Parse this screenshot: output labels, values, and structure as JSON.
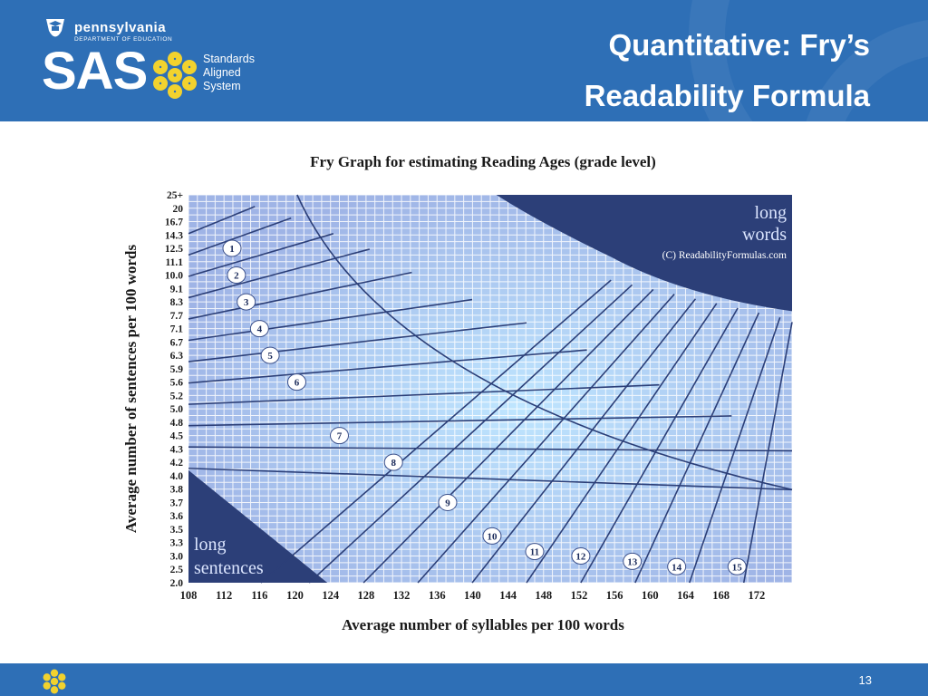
{
  "header": {
    "org_name": "pennsylvania",
    "org_dept": "DEPARTMENT OF EDUCATION",
    "logo_text": "SAS",
    "logo_sub": [
      "Standards",
      "Aligned",
      "System"
    ],
    "title_line1": "Quantitative: Fry’s",
    "title_line2": "Readability Formula",
    "bg_color": "#2e6fb6",
    "accent_color": "#f2d22e"
  },
  "footer": {
    "page_number": "13"
  },
  "chart_data": {
    "type": "line",
    "title": "Fry Graph for estimating Reading Ages (grade level)",
    "xlabel": "Average number of syllables per 100 words",
    "ylabel": "Average number of sentences per 100 words",
    "x_ticks": [
      "108",
      "112",
      "116",
      "120",
      "124",
      "128",
      "132",
      "136",
      "140",
      "144",
      "148",
      "152",
      "156",
      "160",
      "164",
      "168",
      "172"
    ],
    "y_ticks": [
      "25+",
      "20",
      "16.7",
      "14.3",
      "12.5",
      "11.1",
      "10.0",
      "9.1",
      "8.3",
      "7.7",
      "7.1",
      "6.7",
      "6.3",
      "5.9",
      "5.6",
      "5.2",
      "5.0",
      "4.8",
      "4.5",
      "4.3",
      "4.2",
      "4.0",
      "3.8",
      "3.7",
      "3.6",
      "3.5",
      "3.3",
      "3.0",
      "2.5",
      "2.0"
    ],
    "grid": true,
    "grade_labels": [
      "1",
      "2",
      "3",
      "4",
      "5",
      "6",
      "7",
      "8",
      "9",
      "10",
      "11",
      "12",
      "13",
      "14",
      "15"
    ],
    "grade_positions": [
      {
        "x": 112.9,
        "y": "12.5"
      },
      {
        "x": 113.4,
        "y": "10.0"
      },
      {
        "x": 114.5,
        "y": "8.3"
      },
      {
        "x": 116.0,
        "y": "7.1"
      },
      {
        "x": 117.2,
        "y": "6.3"
      },
      {
        "x": 120.2,
        "y": "5.6"
      },
      {
        "x": 125.0,
        "y": "4.5"
      },
      {
        "x": 131.1,
        "y": "4.2"
      },
      {
        "x": 137.2,
        "y": "3.7"
      },
      {
        "x": 142.2,
        "y": "3.4"
      },
      {
        "x": 147.0,
        "y": "3.1"
      },
      {
        "x": 152.2,
        "y": "3.0"
      },
      {
        "x": 158.0,
        "y": "2.8"
      },
      {
        "x": 163.0,
        "y": "2.6"
      },
      {
        "x": 169.8,
        "y": "2.6"
      }
    ],
    "region_labels": {
      "long_words": [
        "long",
        "words"
      ],
      "long_sentences": [
        "long",
        "sentences"
      ]
    },
    "copyright": "(C) ReadabilityFormulas.com",
    "colors": {
      "grid_bg": "#9fb4e6",
      "grid_line": "#ffffff",
      "region": "#2c3f78",
      "curve": "#2c3f78"
    }
  }
}
